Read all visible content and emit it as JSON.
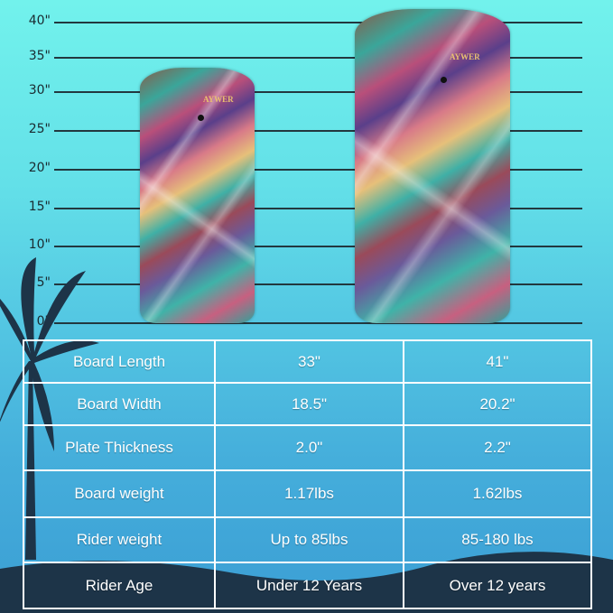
{
  "ruler": {
    "unit": "inch",
    "ticks": [
      "40\"",
      "35\"",
      "30\"",
      "25\"",
      "20\"",
      "15\"",
      "10\"",
      "5\"",
      "0\""
    ]
  },
  "boards": [
    {
      "brand": "AYWER",
      "length_in": 33
    },
    {
      "brand": "AYWER",
      "length_in": 41
    }
  ],
  "colors": {
    "sky_top": "#72f2ec",
    "sky_bottom": "#3b9ed4",
    "ground": "#1d3448",
    "grid": "#ffffff"
  },
  "table": {
    "rows": [
      [
        "Board Length",
        "33\"",
        "41\""
      ],
      [
        "Board Width",
        "18.5\"",
        "20.2\""
      ],
      [
        "Plate Thickness",
        "2.0\"",
        "2.2\""
      ],
      [
        "Board weight",
        "1.17lbs",
        "1.62lbs"
      ],
      [
        "Rider weight",
        "Up to 85lbs",
        "85-180 lbs"
      ],
      [
        "Rider Age",
        "Under 12 Years",
        "Over 12 years"
      ]
    ]
  }
}
